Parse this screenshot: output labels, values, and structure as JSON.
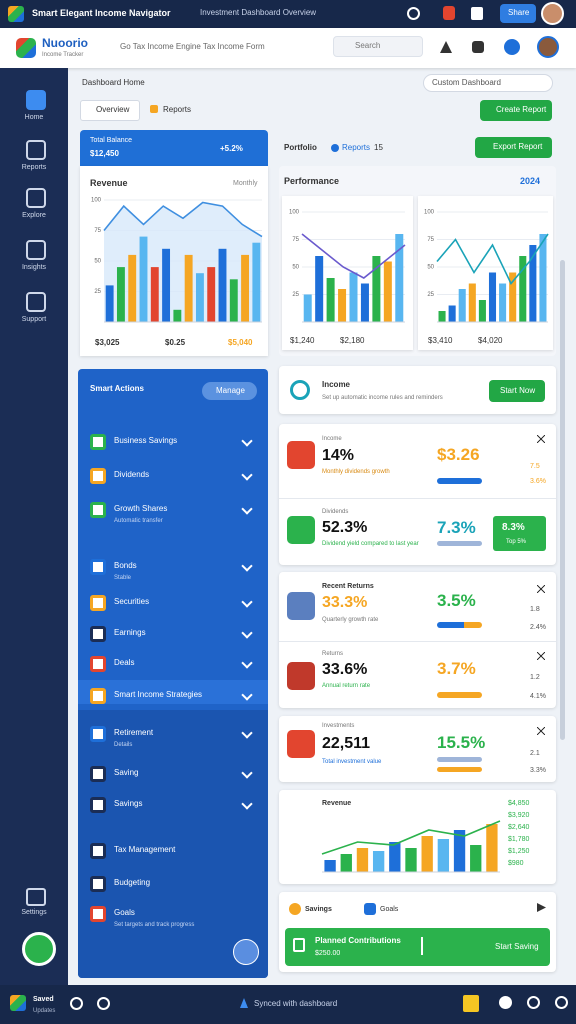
{
  "system_bar": {
    "title": "Smart Elegant Income Navigator",
    "subtitle": "Investment Dashboard Overview",
    "share": "Share"
  },
  "header": {
    "brand": "Nuoorio",
    "brand_sub": "Income Tracker",
    "tagline": "Go Tax Income Engine Tax Income Form",
    "search": "Search"
  },
  "sidebar": {
    "items": [
      "Home",
      "Reports",
      "Explore",
      "Insights",
      "Support"
    ],
    "bottom": "Settings"
  },
  "breadcrumb": {
    "title": "Dashboard Home",
    "custom": "Custom Dashboard"
  },
  "tabs": [
    "Overview",
    "Reports"
  ],
  "create_button": "Create Report",
  "balance_card": {
    "label": "Total Balance",
    "value": "$12,450",
    "change": "+5.2%"
  },
  "revenue_chart": {
    "type": "bar",
    "title": "Revenue",
    "period": "Monthly",
    "values": [
      30,
      45,
      55,
      70,
      45,
      60,
      10,
      55,
      40,
      45,
      60,
      35,
      55,
      65
    ],
    "line": [
      75,
      95,
      80,
      95,
      85,
      98,
      95,
      80,
      70
    ],
    "area": true,
    "colors": [
      "#1e6fd9",
      "#2bb24c",
      "#f5a623",
      "#58b6f0",
      "#e2452f"
    ],
    "line_color": "#3f8fe0",
    "ylim": [
      0,
      100
    ],
    "yticks": [
      25,
      50,
      75,
      100
    ],
    "footer": [
      "$3,025",
      "$0.25",
      "$5,040"
    ]
  },
  "portfolio": {
    "label": "Portfolio",
    "reports": "Reports",
    "count": "15"
  },
  "export_button": "Export Report",
  "performance": {
    "title": "Performance",
    "year": "2024"
  },
  "chart_left": {
    "type": "bar",
    "values": [
      25,
      60,
      40,
      30,
      45,
      35,
      60,
      55,
      80
    ],
    "line": [
      80,
      65,
      50,
      40,
      55,
      70
    ],
    "area": false,
    "colors": [
      "#58b6f0",
      "#1e6fd9",
      "#2bb24c",
      "#f5a623"
    ],
    "line_color": "#6a5acd",
    "ylim": [
      0,
      100
    ],
    "yticks": [
      25,
      50,
      75,
      100
    ],
    "footer": [
      "$1,240",
      "$2,180"
    ]
  },
  "chart_right": {
    "type": "bar",
    "values": [
      10,
      15,
      30,
      35,
      20,
      45,
      35,
      45,
      60,
      70,
      80
    ],
    "line": [
      55,
      75,
      45,
      70,
      35,
      55,
      80
    ],
    "area": false,
    "colors": [
      "#2bb24c",
      "#1e6fd9",
      "#58b6f0",
      "#f5a623"
    ],
    "line_color": "#1aa3b8",
    "ylim": [
      0,
      100
    ],
    "yticks": [
      25,
      50,
      75,
      100
    ],
    "footer": [
      "$3,410",
      "$4,020"
    ]
  },
  "actions": {
    "title": "Smart Actions",
    "manage": "Manage",
    "items": [
      {
        "label": "Business Savings"
      },
      {
        "label": "Dividends"
      },
      {
        "label": "Growth Shares",
        "sub": "Automatic transfer"
      },
      {
        "label": "Bonds",
        "sub": "Stable"
      },
      {
        "label": "Securities"
      },
      {
        "label": "Earnings"
      },
      {
        "label": "Deals"
      },
      {
        "label": "Smart Income Strategies"
      },
      {
        "label": "Retirement",
        "sub": "Details"
      },
      {
        "label": "Saving"
      },
      {
        "label": "Savings"
      },
      {
        "label": "Tax Management"
      },
      {
        "label": "Budgeting"
      },
      {
        "label": "Goals",
        "sub": "Set targets and track progress"
      }
    ]
  },
  "income_card": {
    "title": "Income",
    "sub": "Set up automatic income rules and reminders",
    "button": "Start Now"
  },
  "stats_1": {
    "label": "Income",
    "value": "14%",
    "sub": "Monthly dividends growth",
    "value2": "$3.26",
    "small": [
      "7.5",
      "3.6%"
    ]
  },
  "stats_2": {
    "label": "Dividends",
    "value": "52.3%",
    "sub": "Dividend yield compared to last year",
    "value2": "7.3%",
    "badge": "8.3%",
    "badge_sub": "Top 5%"
  },
  "returns": {
    "title": "Recent Returns",
    "value": "33.3%",
    "sub": "Quarterly growth rate",
    "value2": "3.5%",
    "small": [
      "1.8",
      "2.4%"
    ],
    "label2": "Returns",
    "value_b": "33.6%",
    "sub_b": "Annual return rate",
    "value2_b": "3.7%",
    "small_b": [
      "1.2",
      "4.1%"
    ]
  },
  "investments": {
    "label": "Investments",
    "value": "22,511",
    "sub": "Total investment value",
    "value2": "15.5%",
    "small": [
      "2.1",
      "3.3%"
    ]
  },
  "trend_chart": {
    "type": "bar",
    "title": "Revenue",
    "values": [
      20,
      30,
      40,
      35,
      50,
      40,
      60,
      55,
      70,
      45,
      80
    ],
    "line": [
      30,
      50,
      45,
      70,
      60,
      85
    ],
    "area": false,
    "colors": [
      "#1e6fd9",
      "#2bb24c",
      "#f5a623",
      "#58b6f0"
    ],
    "line_color": "#2bb24c",
    "ylim": [
      0,
      100
    ],
    "yticks": [],
    "legend": [
      "$4,850",
      "$3,920",
      "$2,640",
      "$1,780",
      "$1,250",
      "$980"
    ]
  },
  "savings": {
    "title": "Savings",
    "goals": "Goals",
    "bar_title": "Planned Contributions",
    "bar_sub": "$250.00",
    "bar_button": "Start Saving"
  },
  "bottom_bar": {
    "saved": "Saved",
    "updates": "Updates",
    "center": "Synced with dashboard"
  }
}
